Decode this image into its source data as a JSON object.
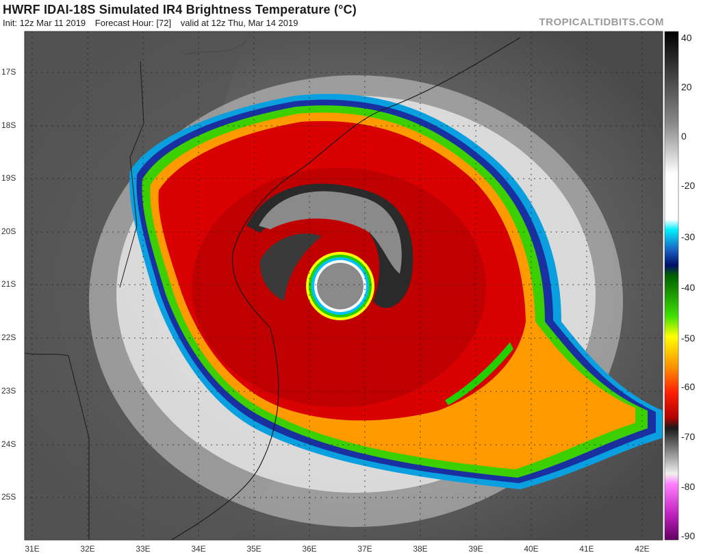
{
  "header": {
    "title": "HWRF IDAI-18S Simulated IR4 Brightness Temperature (°C)",
    "init": "Init: 12z Mar 11 2019",
    "forecast_hour": "Forecast Hour: [72]",
    "valid": "valid at 12z Thu, Mar 14 2019",
    "brand": "TROPICALTIDBITS.COM"
  },
  "map": {
    "lat_labels": [
      "17S",
      "18S",
      "19S",
      "20S",
      "21S",
      "22S",
      "23S",
      "24S",
      "25S"
    ],
    "lon_labels": [
      "31E",
      "32E",
      "33E",
      "34E",
      "35E",
      "36E",
      "37E",
      "38E",
      "39E",
      "40E",
      "41E",
      "42E"
    ]
  },
  "colorbar": {
    "labels": [
      "40",
      "20",
      "0",
      "-20",
      "-30",
      "-40",
      "-50",
      "-60",
      "-70",
      "-80",
      "-90"
    ],
    "colors": [
      "#000000",
      "#ffffff",
      "#00e5ff",
      "#001a80",
      "#00c800",
      "#ffff00",
      "#ff8c00",
      "#e00000",
      "#101010",
      "#e8e8e8",
      "#ff00ff",
      "#700070"
    ]
  },
  "colors": {
    "eye": "#8a8a8a",
    "cold_cloud_red": "#d80000",
    "green_band": "#22d000",
    "orange_band": "#ff8c00",
    "land_gray": "#5a5a5a"
  }
}
